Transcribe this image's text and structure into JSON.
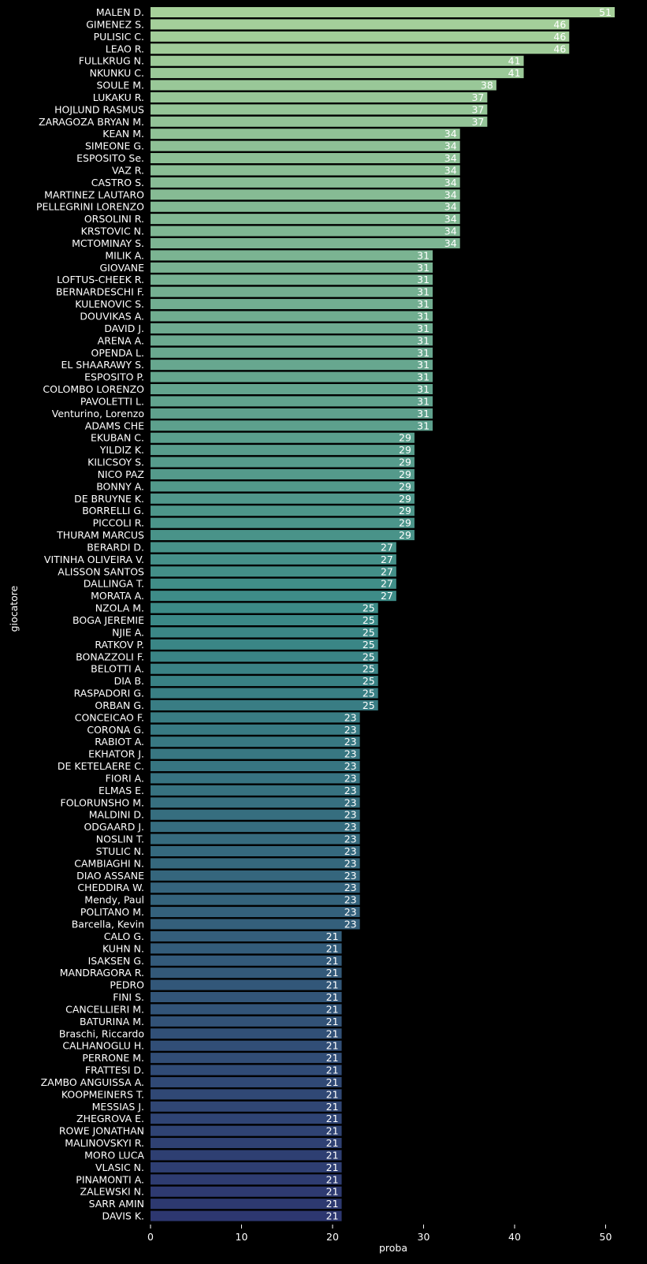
{
  "chart_data": {
    "type": "bar",
    "orientation": "horizontal",
    "xlabel": "proba",
    "ylabel": "giocatore",
    "xlim": [
      0,
      51
    ],
    "xticks": [
      0,
      10,
      20,
      30,
      40,
      50
    ],
    "grid": false,
    "colormap": "crest (light green at top to dark blue at bottom)",
    "categories": [
      "MALEN D.",
      "GIMENEZ S.",
      "PULISIC C.",
      "LEAO R.",
      "FULLKRUG N.",
      "NKUNKU C.",
      "SOULE M.",
      "LUKAKU R.",
      "HOJLUND RASMUS",
      "ZARAGOZA BRYAN M.",
      "KEAN M.",
      "SIMEONE G.",
      "ESPOSITO Se.",
      "VAZ R.",
      "CASTRO S.",
      "MARTINEZ LAUTARO",
      "PELLEGRINI LORENZO",
      "ORSOLINI R.",
      "KRSTOVIC N.",
      "MCTOMINAY S.",
      "MILIK A.",
      "GIOVANE",
      "LOFTUS-CHEEK R.",
      "BERNARDESCHI F.",
      "KULENOVIC S.",
      "DOUVIKAS A.",
      "DAVID J.",
      "ARENA A.",
      "OPENDA L.",
      "EL SHAARAWY S.",
      "ESPOSITO P.",
      "COLOMBO LORENZO",
      "PAVOLETTI L.",
      "Venturino, Lorenzo",
      "ADAMS CHE",
      "EKUBAN C.",
      "YILDIZ K.",
      "KILICSOY S.",
      "NICO PAZ",
      "BONNY A.",
      "DE BRUYNE K.",
      "BORRELLI G.",
      "PICCOLI R.",
      "THURAM MARCUS",
      "BERARDI D.",
      "VITINHA OLIVEIRA V.",
      "ALISSON SANTOS",
      "DALLINGA T.",
      "MORATA A.",
      "NZOLA M.",
      "BOGA JEREMIE",
      "NJIE A.",
      "RATKOV P.",
      "BONAZZOLI F.",
      "BELOTTI A.",
      "DIA B.",
      "RASPADORI G.",
      "ORBAN G.",
      "CONCEICAO F.",
      "CORONA G.",
      "RABIOT A.",
      "EKHATOR J.",
      "DE KETELAERE C.",
      "FIORI A.",
      "ELMAS E.",
      "FOLORUNSHO M.",
      "MALDINI D.",
      "ODGAARD J.",
      "NOSLIN T.",
      "STULIC N.",
      "CAMBIAGHI N.",
      "DIAO ASSANE",
      "CHEDDIRA W.",
      "Mendy, Paul",
      "POLITANO M.",
      "Barcella, Kevin",
      "CALO G.",
      "KUHN N.",
      "ISAKSEN G.",
      "MANDRAGORA R.",
      "PEDRO",
      "FINI S.",
      "CANCELLIERI M.",
      "BATURINA M.",
      "Braschi, Riccardo",
      "CALHANOGLU H.",
      "PERRONE M.",
      "FRATTESI D.",
      "ZAMBO ANGUISSA A.",
      "KOOPMEINERS T.",
      "MESSIAS J.",
      "ZHEGROVA E.",
      "ROWE JONATHAN",
      "MALINOVSKYI R.",
      "MORO LUCA",
      "VLASIC N.",
      "PINAMONTI A.",
      "ZALEWSKI N.",
      "SARR AMIN",
      "DAVIS K."
    ],
    "values": [
      51,
      46,
      46,
      46,
      41,
      41,
      38,
      37,
      37,
      37,
      34,
      34,
      34,
      34,
      34,
      34,
      34,
      34,
      34,
      34,
      31,
      31,
      31,
      31,
      31,
      31,
      31,
      31,
      31,
      31,
      31,
      31,
      31,
      31,
      31,
      29,
      29,
      29,
      29,
      29,
      29,
      29,
      29,
      29,
      27,
      27,
      27,
      27,
      27,
      25,
      25,
      25,
      25,
      25,
      25,
      25,
      25,
      25,
      23,
      23,
      23,
      23,
      23,
      23,
      23,
      23,
      23,
      23,
      23,
      23,
      23,
      23,
      23,
      23,
      23,
      23,
      21,
      21,
      21,
      21,
      21,
      21,
      21,
      21,
      21,
      21,
      21,
      21,
      21,
      21,
      21,
      21,
      21,
      21,
      21,
      21,
      21,
      21,
      21,
      21
    ],
    "data_labels": true,
    "colors": {
      "background": "#000000",
      "text": "#ffffff",
      "gradient_start": "#a6d09a",
      "gradient_mid": "#3b8a87",
      "gradient_end": "#2d3770"
    }
  }
}
